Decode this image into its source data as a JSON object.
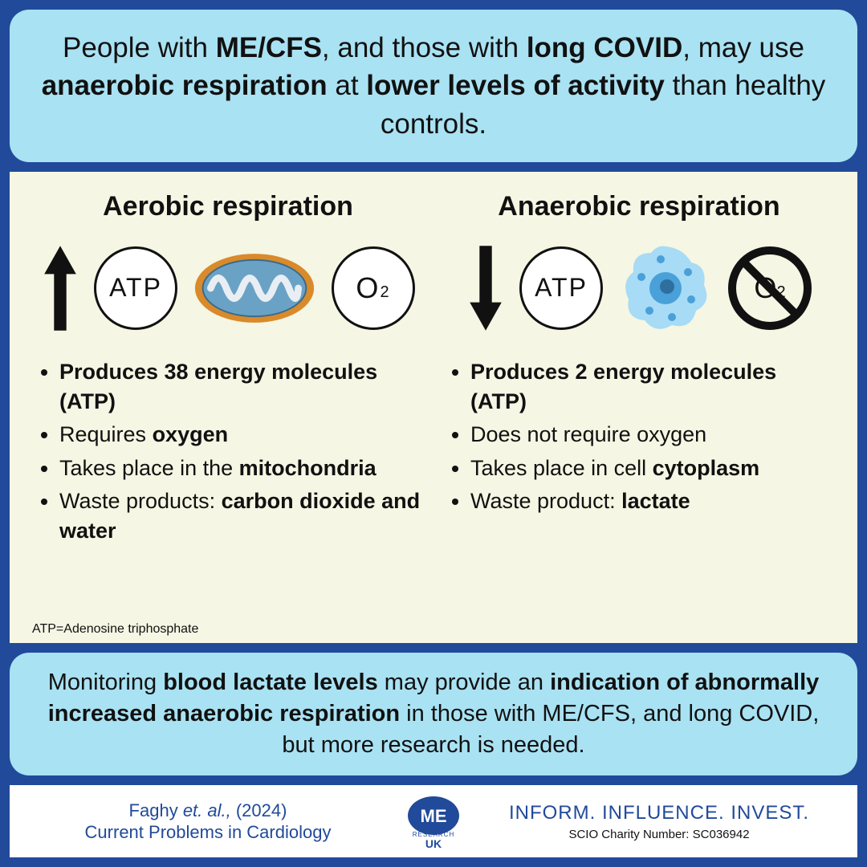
{
  "colors": {
    "frame_bg": "#214a9a",
    "panel_bg": "#a9e2f3",
    "body_bg": "#f5f6e3",
    "text": "#111111",
    "accent": "#214a9a",
    "mito_fill": "#6aa2c5",
    "mito_outer": "#d98a2b",
    "cell_fill": "#a7dbf6",
    "cell_core": "#4aa0d8"
  },
  "top": {
    "html": "People with <b>ME/CFS</b>, and those with <b>long COVID</b>, may use <b>anaerobic respiration</b> at <b>lower levels of activity</b> than healthy controls."
  },
  "aerobic": {
    "title": "Aerobic respiration",
    "arrow": "up",
    "atp_label": "ATP",
    "o2_label": "O",
    "o2_sub": "2",
    "bullets_html": [
      "<b>Produces 38 energy molecules (ATP)</b>",
      "Requires <b>oxygen</b>",
      "Takes place in the <b>mitochondria</b>",
      "Waste products: <b>carbon dioxide and water</b>"
    ]
  },
  "anaerobic": {
    "title": "Anaerobic respiration",
    "arrow": "down",
    "atp_label": "ATP",
    "o2_label": "O",
    "o2_sub": "2",
    "bullets_html": [
      "<b>Produces 2 energy molecules (ATP)</b>",
      "Does not require oxygen",
      "Takes place in cell <b>cytoplasm</b>",
      "Waste product: <b>lactate</b>"
    ]
  },
  "footnote": "ATP=Adenosine triphosphate",
  "bottom": {
    "html": "Monitoring <b>blood lactate levels</b> may provide an <b>indication of abnormally increased anaerobic respiration</b> in those with ME/CFS, and long COVID, but more research is needed."
  },
  "footer": {
    "cite_line1_html": "Faghy <i>et. al.,</i> (2024)",
    "cite_line2": "Current Problems in Cardiology",
    "logo_top": "ME",
    "logo_mid": "RESEARCH",
    "logo_bottom": "UK",
    "tagline": "INFORM. INFLUENCE. INVEST.",
    "charity": "SCIO Charity Number: SC036942"
  }
}
